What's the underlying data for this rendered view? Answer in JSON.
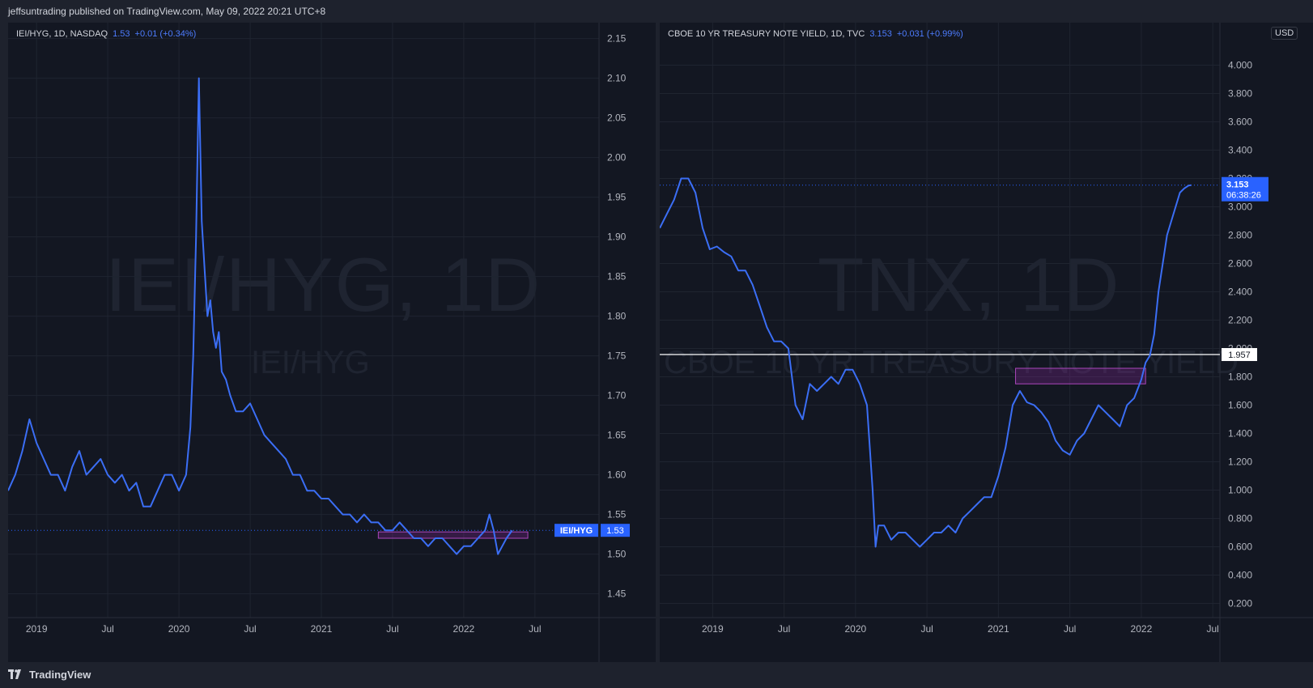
{
  "header": {
    "publisher_line": "jeffsuntrading published on TradingView.com, May 09, 2022 20:21 UTC+8"
  },
  "footer": {
    "brand": "TradingView"
  },
  "colors": {
    "series": "#3b6ef5",
    "accent": "#2962ff",
    "background": "#131722",
    "grid": "#1f2430",
    "marker": "#9c27b0"
  },
  "left_chart": {
    "legend": {
      "symbol": "IEI/HYG, 1D, NASDAQ",
      "last": "1.53",
      "change": "+0.01 (+0.34%)"
    },
    "watermark_big": "IEI/HYG, 1D",
    "watermark_small": "IEI/HYG",
    "price_tag_name": "IEI/HYG",
    "price_tag_value": "1.53"
  },
  "right_chart": {
    "legend": {
      "symbol": "CBOE 10 YR TREASURY NOTE YIELD, 1D, TVC",
      "last": "3.153",
      "change": "+0.031 (+0.99%)"
    },
    "watermark_big": "TNX, 1D",
    "watermark_small": "CBOE 10 YR TREASURY NOTE YIELD",
    "currency": "USD",
    "price_tag_value": "3.153",
    "price_tag_countdown": "06:38:26",
    "hline_label": "1.957"
  },
  "chart_data": [
    {
      "type": "line",
      "id": "iei-hyg",
      "title": "IEI/HYG, 1D, NASDAQ",
      "x_labels": [
        "2019",
        "Jul",
        "2020",
        "Jul",
        "2021",
        "Jul",
        "2022",
        "Jul"
      ],
      "x_label_dates": [
        2019.0,
        2019.5,
        2020.0,
        2020.5,
        2021.0,
        2021.5,
        2022.0,
        2022.5
      ],
      "xlim": [
        2018.8,
        2022.95
      ],
      "ylim": [
        1.42,
        2.17
      ],
      "y_ticks": [
        "2.15",
        "2.10",
        "2.05",
        "2.00",
        "1.95",
        "1.90",
        "1.85",
        "1.80",
        "1.75",
        "1.70",
        "1.65",
        "1.60",
        "1.55",
        "1.50",
        "1.45"
      ],
      "y_tick_values": [
        2.15,
        2.1,
        2.05,
        2.0,
        1.95,
        1.9,
        1.85,
        1.8,
        1.75,
        1.7,
        1.65,
        1.6,
        1.55,
        1.5,
        1.45
      ],
      "last_value": 1.53,
      "support_zone": {
        "x": [
          2021.4,
          2022.45
        ],
        "y": [
          1.52,
          1.528
        ]
      },
      "series": [
        {
          "x": [
            2018.8,
            2018.85,
            2018.9,
            2018.95,
            2019.0,
            2019.05,
            2019.1,
            2019.15,
            2019.2,
            2019.25,
            2019.3,
            2019.35,
            2019.4,
            2019.45,
            2019.5,
            2019.55,
            2019.6,
            2019.65,
            2019.7,
            2019.75,
            2019.8,
            2019.85,
            2019.9,
            2019.95,
            2020.0,
            2020.05,
            2020.08,
            2020.1,
            2020.12,
            2020.14,
            2020.16,
            2020.18,
            2020.2,
            2020.22,
            2020.24,
            2020.26,
            2020.28,
            2020.3,
            2020.33,
            2020.36,
            2020.4,
            2020.45,
            2020.5,
            2020.55,
            2020.6,
            2020.65,
            2020.7,
            2020.75,
            2020.8,
            2020.85,
            2020.9,
            2020.95,
            2021.0,
            2021.05,
            2021.1,
            2021.15,
            2021.2,
            2021.25,
            2021.3,
            2021.35,
            2021.4,
            2021.45,
            2021.5,
            2021.55,
            2021.6,
            2021.65,
            2021.7,
            2021.75,
            2021.8,
            2021.85,
            2021.9,
            2021.95,
            2022.0,
            2022.05,
            2022.1,
            2022.15,
            2022.18,
            2022.21,
            2022.24,
            2022.27,
            2022.3,
            2022.34
          ],
          "values": [
            1.58,
            1.6,
            1.63,
            1.67,
            1.64,
            1.62,
            1.6,
            1.6,
            1.58,
            1.61,
            1.63,
            1.6,
            1.61,
            1.62,
            1.6,
            1.59,
            1.6,
            1.58,
            1.59,
            1.56,
            1.56,
            1.58,
            1.6,
            1.6,
            1.58,
            1.6,
            1.66,
            1.75,
            1.9,
            2.1,
            1.92,
            1.86,
            1.8,
            1.82,
            1.78,
            1.76,
            1.78,
            1.73,
            1.72,
            1.7,
            1.68,
            1.68,
            1.69,
            1.67,
            1.65,
            1.64,
            1.63,
            1.62,
            1.6,
            1.6,
            1.58,
            1.58,
            1.57,
            1.57,
            1.56,
            1.55,
            1.55,
            1.54,
            1.55,
            1.54,
            1.54,
            1.53,
            1.53,
            1.54,
            1.53,
            1.52,
            1.52,
            1.51,
            1.52,
            1.52,
            1.51,
            1.5,
            1.51,
            1.51,
            1.52,
            1.53,
            1.55,
            1.53,
            1.5,
            1.51,
            1.52,
            1.53
          ]
        }
      ]
    },
    {
      "type": "line",
      "id": "tnx",
      "title": "CBOE 10 YR TREASURY NOTE YIELD, 1D, TVC",
      "x_labels": [
        "2019",
        "Jul",
        "2020",
        "Jul",
        "2021",
        "Jul",
        "2022",
        "Jul"
      ],
      "x_label_dates": [
        2019.0,
        2019.5,
        2020.0,
        2020.5,
        2021.0,
        2021.5,
        2022.0,
        2022.5
      ],
      "xlim": [
        2018.63,
        2022.55
      ],
      "ylim": [
        0.1,
        4.3
      ],
      "y_ticks": [
        "4.000",
        "3.800",
        "3.600",
        "3.400",
        "3.200",
        "3.000",
        "2.800",
        "2.600",
        "2.400",
        "2.200",
        "2.000",
        "1.800",
        "1.600",
        "1.400",
        "1.200",
        "1.000",
        "0.800",
        "0.600",
        "0.400",
        "0.200"
      ],
      "y_tick_values": [
        4.0,
        3.8,
        3.6,
        3.4,
        3.2,
        3.0,
        2.8,
        2.6,
        2.4,
        2.2,
        2.0,
        1.8,
        1.6,
        1.4,
        1.2,
        1.0,
        0.8,
        0.6,
        0.4,
        0.2
      ],
      "last_value": 3.153,
      "hline": 1.957,
      "support_zone": {
        "x": [
          2021.12,
          2022.03
        ],
        "y": [
          1.75,
          1.86
        ]
      },
      "series": [
        {
          "x": [
            2018.63,
            2018.68,
            2018.73,
            2018.78,
            2018.83,
            2018.88,
            2018.93,
            2018.98,
            2019.03,
            2019.08,
            2019.13,
            2019.18,
            2019.23,
            2019.28,
            2019.33,
            2019.38,
            2019.43,
            2019.48,
            2019.53,
            2019.58,
            2019.63,
            2019.68,
            2019.73,
            2019.78,
            2019.83,
            2019.88,
            2019.93,
            2019.98,
            2020.03,
            2020.08,
            2020.12,
            2020.14,
            2020.16,
            2020.2,
            2020.25,
            2020.3,
            2020.35,
            2020.4,
            2020.45,
            2020.5,
            2020.55,
            2020.6,
            2020.65,
            2020.7,
            2020.75,
            2020.8,
            2020.85,
            2020.9,
            2020.95,
            2021.0,
            2021.05,
            2021.1,
            2021.15,
            2021.2,
            2021.25,
            2021.3,
            2021.35,
            2021.4,
            2021.45,
            2021.5,
            2021.55,
            2021.6,
            2021.65,
            2021.7,
            2021.75,
            2021.8,
            2021.85,
            2021.9,
            2021.95,
            2022.0,
            2022.03,
            2022.06,
            2022.09,
            2022.12,
            2022.15,
            2022.18,
            2022.21,
            2022.24,
            2022.27,
            2022.3,
            2022.33,
            2022.35
          ],
          "values": [
            2.85,
            2.95,
            3.05,
            3.2,
            3.2,
            3.1,
            2.85,
            2.7,
            2.72,
            2.68,
            2.65,
            2.55,
            2.55,
            2.45,
            2.3,
            2.15,
            2.05,
            2.05,
            2.0,
            1.6,
            1.5,
            1.75,
            1.7,
            1.75,
            1.8,
            1.75,
            1.85,
            1.85,
            1.75,
            1.6,
            1.0,
            0.6,
            0.75,
            0.75,
            0.65,
            0.7,
            0.7,
            0.65,
            0.6,
            0.65,
            0.7,
            0.7,
            0.75,
            0.7,
            0.8,
            0.85,
            0.9,
            0.95,
            0.95,
            1.1,
            1.3,
            1.6,
            1.7,
            1.62,
            1.6,
            1.55,
            1.48,
            1.35,
            1.28,
            1.25,
            1.35,
            1.4,
            1.5,
            1.6,
            1.55,
            1.5,
            1.45,
            1.6,
            1.65,
            1.78,
            1.9,
            1.95,
            2.1,
            2.4,
            2.6,
            2.8,
            2.9,
            3.0,
            3.1,
            3.13,
            3.15,
            3.153
          ]
        }
      ]
    }
  ]
}
